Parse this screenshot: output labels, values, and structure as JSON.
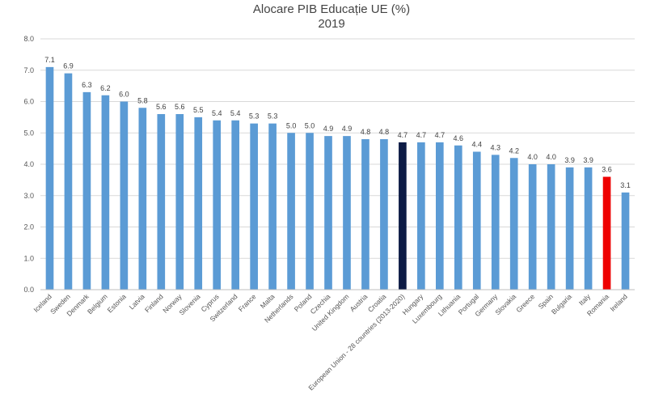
{
  "chart_data": {
    "type": "bar",
    "title": "Alocare PIB Educație UE (%)",
    "subtitle": "2019",
    "xlabel": "",
    "ylabel": "",
    "ylim": [
      0,
      8
    ],
    "yticks": [
      "0.0",
      "1.0",
      "2.0",
      "3.0",
      "4.0",
      "5.0",
      "6.0",
      "7.0",
      "8.0"
    ],
    "grid": true,
    "categories": [
      "Iceland",
      "Sweden",
      "Denmark",
      "Belgium",
      "Estonia",
      "Latvia",
      "Finland",
      "Norway",
      "Slovenia",
      "Cyprus",
      "Switzerland",
      "France",
      "Malta",
      "Netherlands",
      "Poland",
      "Czechia",
      "United Kingdom",
      "Austria",
      "Croatia",
      "European Union - 28 countries (2013-2020)",
      "Hungary",
      "Luxembourg",
      "Lithuania",
      "Portugal",
      "Germany",
      "Slovakia",
      "Greece",
      "Spain",
      "Bulgaria",
      "Italy",
      "Romania",
      "Ireland"
    ],
    "values": [
      7.1,
      6.9,
      6.3,
      6.2,
      6.0,
      5.8,
      5.6,
      5.6,
      5.5,
      5.4,
      5.4,
      5.3,
      5.3,
      5.0,
      5.0,
      4.9,
      4.9,
      4.8,
      4.8,
      4.7,
      4.7,
      4.7,
      4.6,
      4.4,
      4.3,
      4.2,
      4.0,
      4.0,
      3.9,
      3.9,
      3.6,
      3.1
    ],
    "data_labels": [
      "7.1",
      "6.9",
      "6.3",
      "6.2",
      "6.0",
      "5.8",
      "5.6",
      "5.6",
      "5.5",
      "5.4",
      "5.4",
      "5.3",
      "5.3",
      "5.0",
      "5.0",
      "4.9",
      "4.9",
      "4.8",
      "4.8",
      "4.7",
      "4.7",
      "4.7",
      "4.6",
      "4.4",
      "4.3",
      "4.2",
      "4.0",
      "4.0",
      "3.9",
      "3.9",
      "3.6",
      "3.1"
    ],
    "colors": {
      "default": "#5b9bd5",
      "highlights": {
        "European Union - 28 countries (2013-2020)": "#0d1b45",
        "Romania": "#ee0000"
      },
      "grid": "#d9d9d9"
    }
  }
}
